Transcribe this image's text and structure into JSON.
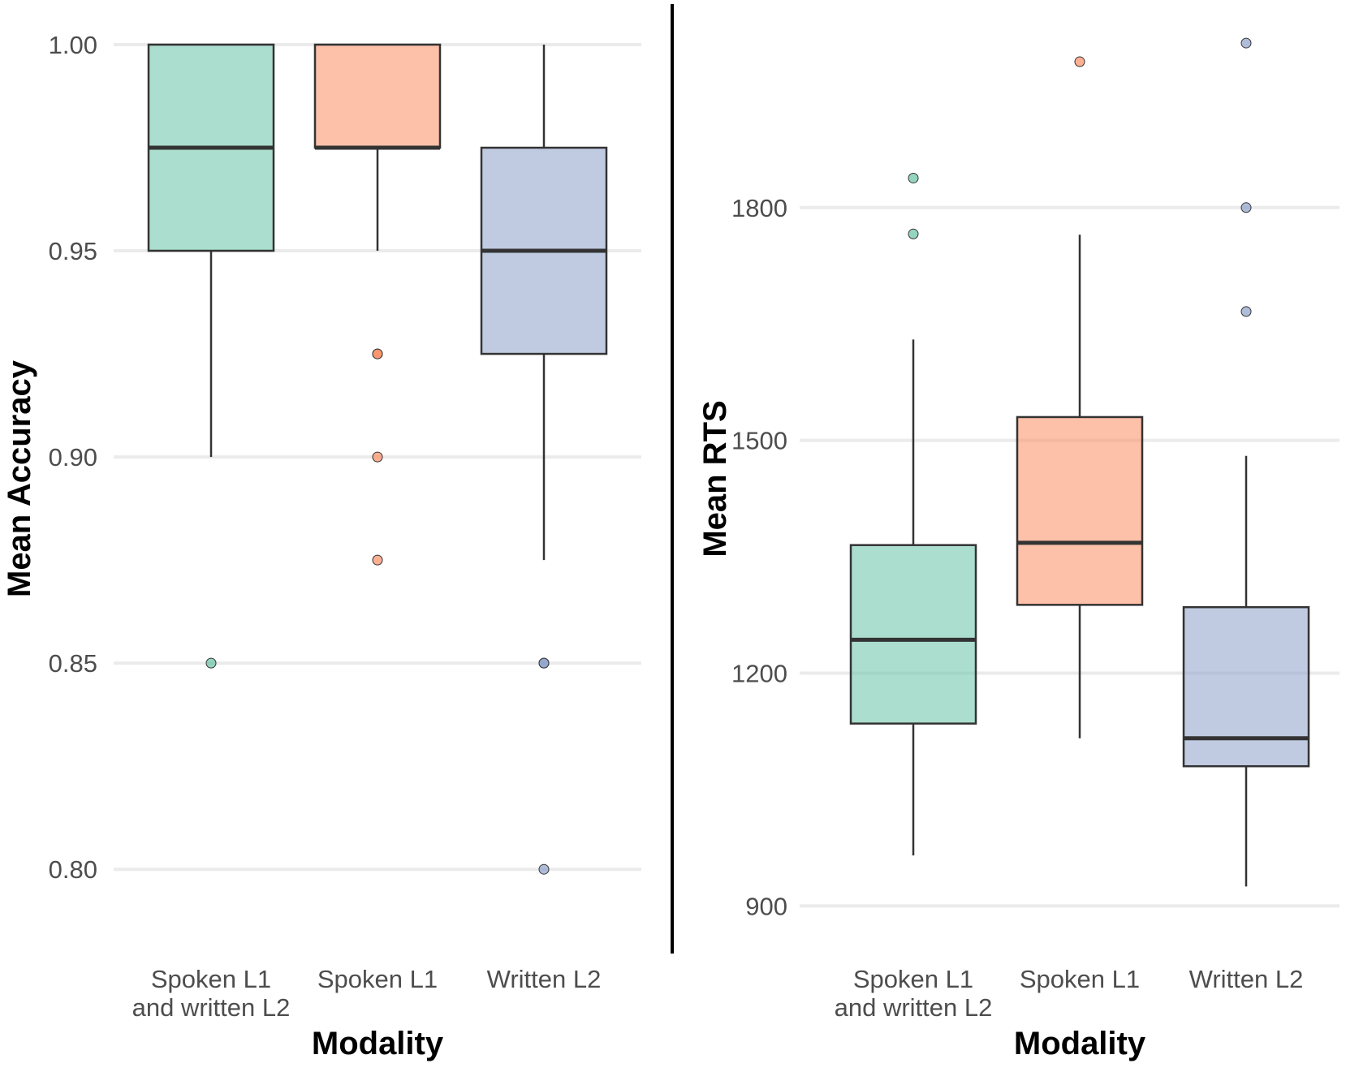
{
  "chart_data": [
    {
      "type": "boxplot",
      "panel": "left",
      "xlabel": "Modality",
      "ylabel": "Mean Accuracy",
      "ylim": [
        0.79,
        1.0
      ],
      "yticks": [
        0.8,
        0.85,
        0.9,
        0.95,
        1.0
      ],
      "ytick_labels": [
        "0.80",
        "0.85",
        "0.90",
        "0.95",
        "1.00"
      ],
      "grid": true,
      "categories": [
        {
          "name": "spoken-l1-written-l2",
          "label_lines": [
            "Spoken L1",
            "and written L2"
          ]
        },
        {
          "name": "spoken-l1",
          "label_lines": [
            "Spoken L1"
          ]
        },
        {
          "name": "written-l2",
          "label_lines": [
            "Written L2"
          ]
        }
      ],
      "boxes": [
        {
          "category": "Spoken L1 and written L2",
          "color": "#66c2a5",
          "whisker_low": 0.9,
          "q1": 0.95,
          "median": 0.975,
          "q3": 1.0,
          "whisker_high": 1.0,
          "outliers": [
            0.85
          ]
        },
        {
          "category": "Spoken L1",
          "color": "#fc8d62",
          "whisker_low": 0.95,
          "q1": 0.975,
          "median": 0.975,
          "q3": 1.0,
          "whisker_high": 1.0,
          "outliers": [
            0.925,
            0.925,
            0.9,
            0.875
          ]
        },
        {
          "category": "Written L2",
          "color": "#8da0cb",
          "whisker_low": 0.875,
          "q1": 0.925,
          "median": 0.95,
          "q3": 0.975,
          "whisker_high": 1.0,
          "outliers": [
            0.85,
            0.85,
            0.8
          ]
        }
      ]
    },
    {
      "type": "boxplot",
      "panel": "right",
      "xlabel": "Modality",
      "ylabel": "Mean RTS",
      "ylim": [
        870,
        2010
      ],
      "yticks": [
        900,
        1200,
        1500,
        1800
      ],
      "ytick_labels": [
        "900",
        "1200",
        "1500",
        "1800"
      ],
      "grid": true,
      "categories": [
        {
          "name": "spoken-l1-written-l2",
          "label_lines": [
            "Spoken L1",
            "and written L2"
          ]
        },
        {
          "name": "spoken-l1",
          "label_lines": [
            "Spoken L1"
          ]
        },
        {
          "name": "written-l2",
          "label_lines": [
            "Written L2"
          ]
        }
      ],
      "boxes": [
        {
          "category": "Spoken L1 and written L2",
          "color": "#66c2a5",
          "whisker_low": 965,
          "q1": 1135,
          "median": 1243,
          "q3": 1365,
          "whisker_high": 1630,
          "outliers": [
            1838,
            1766
          ]
        },
        {
          "category": "Spoken L1",
          "color": "#fc8d62",
          "whisker_low": 1116,
          "q1": 1288,
          "median": 1368,
          "q3": 1530,
          "whisker_high": 1765,
          "outliers": [
            1988
          ]
        },
        {
          "category": "Written L2",
          "color": "#8da0cb",
          "whisker_low": 925,
          "q1": 1080,
          "median": 1116,
          "q3": 1285,
          "whisker_high": 1480,
          "outliers": [
            2012,
            1800,
            1666
          ]
        }
      ]
    }
  ]
}
